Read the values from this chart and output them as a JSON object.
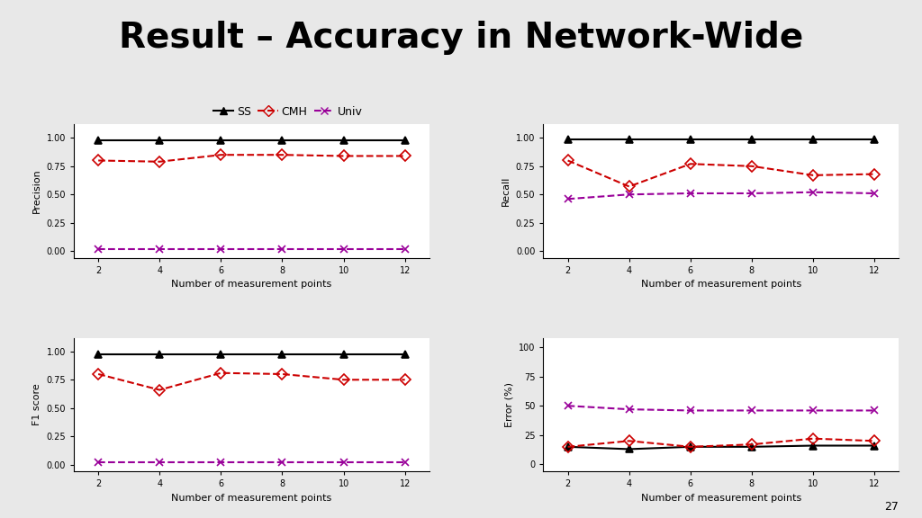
{
  "title": "Result – Accuracy in Network-Wide",
  "x": [
    2,
    4,
    6,
    8,
    10,
    12
  ],
  "precision": {
    "SS": [
      0.975,
      0.975,
      0.975,
      0.975,
      0.975,
      0.975
    ],
    "CMH": [
      0.8,
      0.79,
      0.85,
      0.85,
      0.84,
      0.84
    ],
    "Univ": [
      0.02,
      0.02,
      0.02,
      0.02,
      0.02,
      0.02
    ]
  },
  "recall": {
    "SS": [
      0.99,
      0.99,
      0.99,
      0.99,
      0.99,
      0.99
    ],
    "CMH": [
      0.8,
      0.57,
      0.77,
      0.75,
      0.67,
      0.68
    ],
    "Univ": [
      0.46,
      0.5,
      0.51,
      0.51,
      0.52,
      0.51
    ]
  },
  "f1": {
    "SS": [
      0.975,
      0.975,
      0.975,
      0.975,
      0.975,
      0.975
    ],
    "CMH": [
      0.8,
      0.66,
      0.81,
      0.8,
      0.75,
      0.75
    ],
    "Univ": [
      0.02,
      0.02,
      0.02,
      0.02,
      0.02,
      0.02
    ]
  },
  "error": {
    "SS": [
      15,
      13,
      15,
      15,
      16,
      16
    ],
    "CMH": [
      15,
      20,
      15,
      17,
      22,
      20
    ],
    "Univ": [
      50,
      47,
      46,
      46,
      46,
      46
    ]
  },
  "colors": {
    "SS": "#000000",
    "CMH": "#cc0000",
    "Univ": "#990099"
  },
  "markers": {
    "SS": "^",
    "CMH": "D",
    "Univ": "x"
  },
  "linestyles": {
    "SS": "-",
    "CMH": "--",
    "Univ": "--"
  },
  "markerfacecolors": {
    "SS": "#000000",
    "CMH": "none",
    "Univ": "#990099"
  },
  "bg_color": "#e8e8e8",
  "plot_bg": "#ffffff",
  "ylabel_precision": "Precision",
  "ylabel_recall": "Recall",
  "ylabel_f1": "F1 score",
  "ylabel_error": "Error (%)",
  "xlabel": "Number of measurement points",
  "legend_labels": [
    "SS",
    "CMH",
    "Univ"
  ],
  "page_number": "27",
  "title_fontsize": 28,
  "axis_fontsize": 8,
  "tick_fontsize": 7,
  "legend_fontsize": 9
}
